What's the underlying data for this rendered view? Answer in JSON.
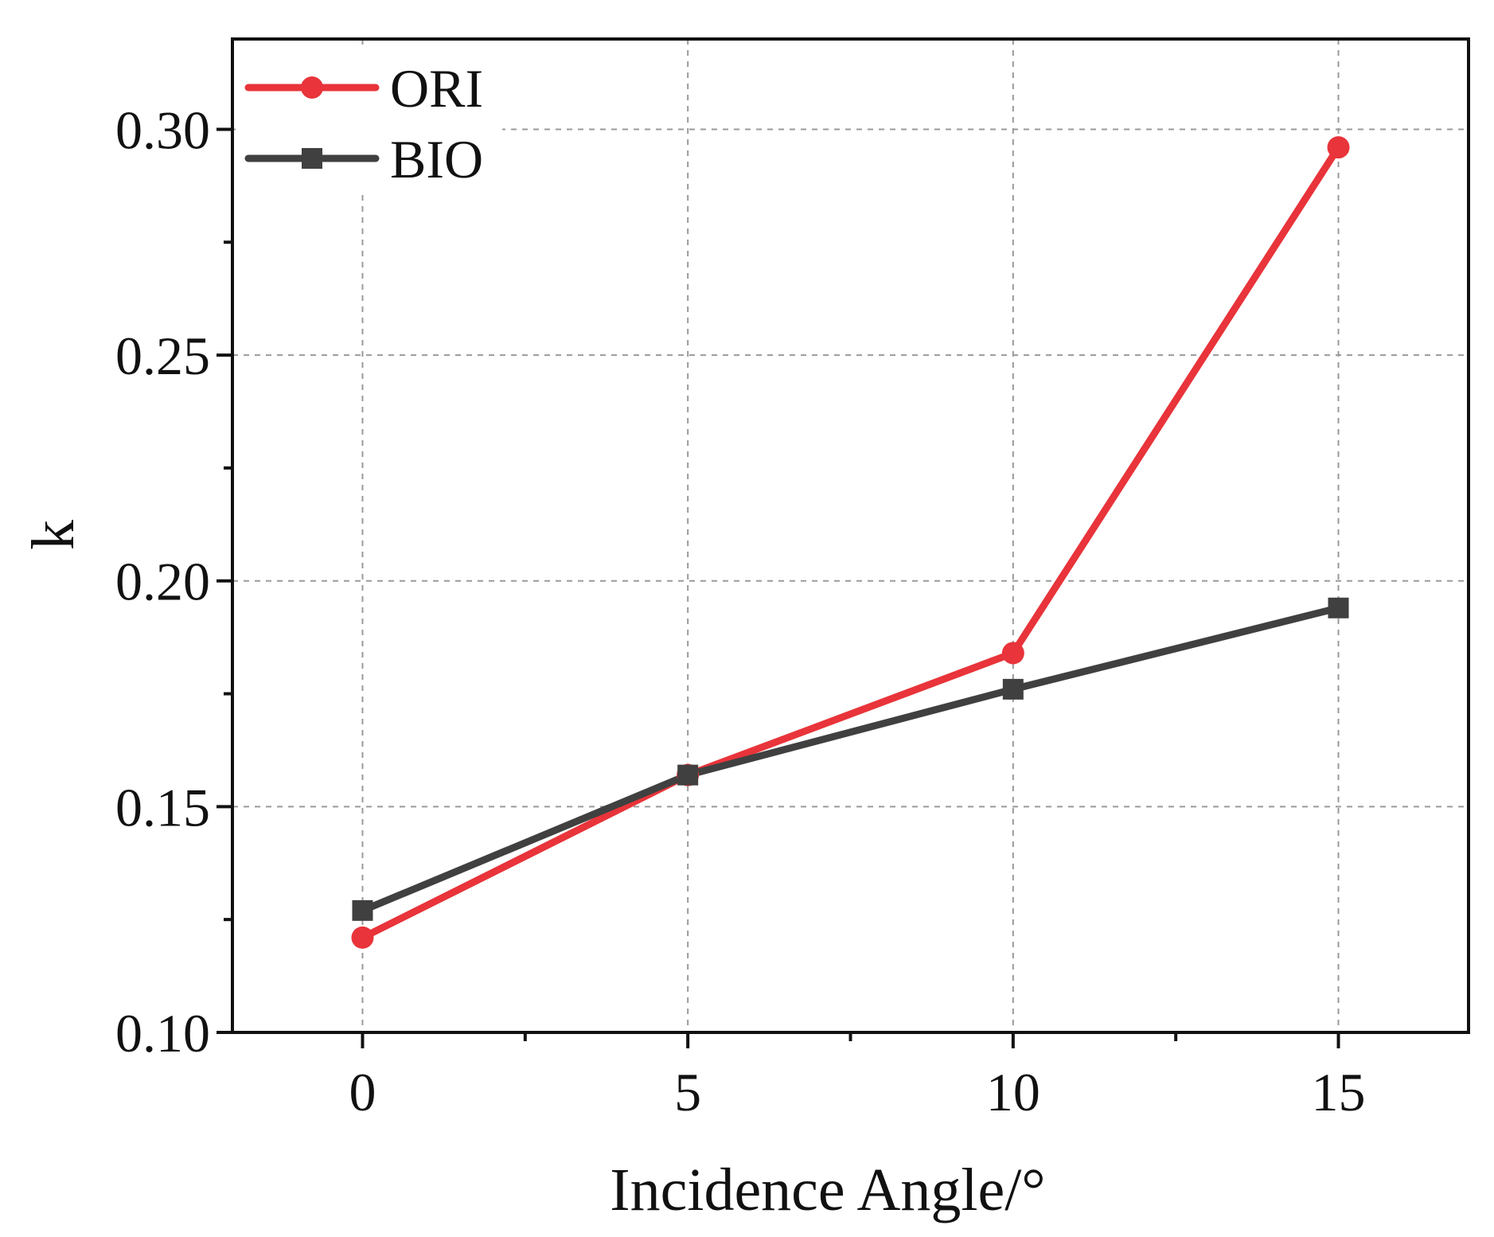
{
  "chart_data": {
    "type": "line",
    "xlabel": "Incidence Angle/°",
    "ylabel": "k",
    "xlim": [
      -2,
      17
    ],
    "ylim": [
      0.1,
      0.32
    ],
    "x_ticks": [
      0,
      5,
      10,
      15
    ],
    "x_tick_labels": [
      "0",
      "5",
      "10",
      "15"
    ],
    "x_minor_ticks": [
      2.5,
      7.5,
      12.5
    ],
    "y_ticks": [
      0.1,
      0.15,
      0.2,
      0.25,
      0.3
    ],
    "y_tick_labels": [
      "0.10",
      "0.15",
      "0.20",
      "0.25",
      "0.30"
    ],
    "y_minor_ticks": [
      0.125,
      0.175,
      0.225,
      0.275
    ],
    "grid": true,
    "legend_position": "top-left",
    "x": [
      0,
      5,
      10,
      15
    ],
    "series": [
      {
        "name": "ORI",
        "values": [
          0.121,
          0.157,
          0.184,
          0.296
        ],
        "color": "#e8343a",
        "marker": "circle"
      },
      {
        "name": "BIO",
        "values": [
          0.127,
          0.157,
          0.176,
          0.194
        ],
        "color": "#404040",
        "marker": "square"
      }
    ]
  }
}
